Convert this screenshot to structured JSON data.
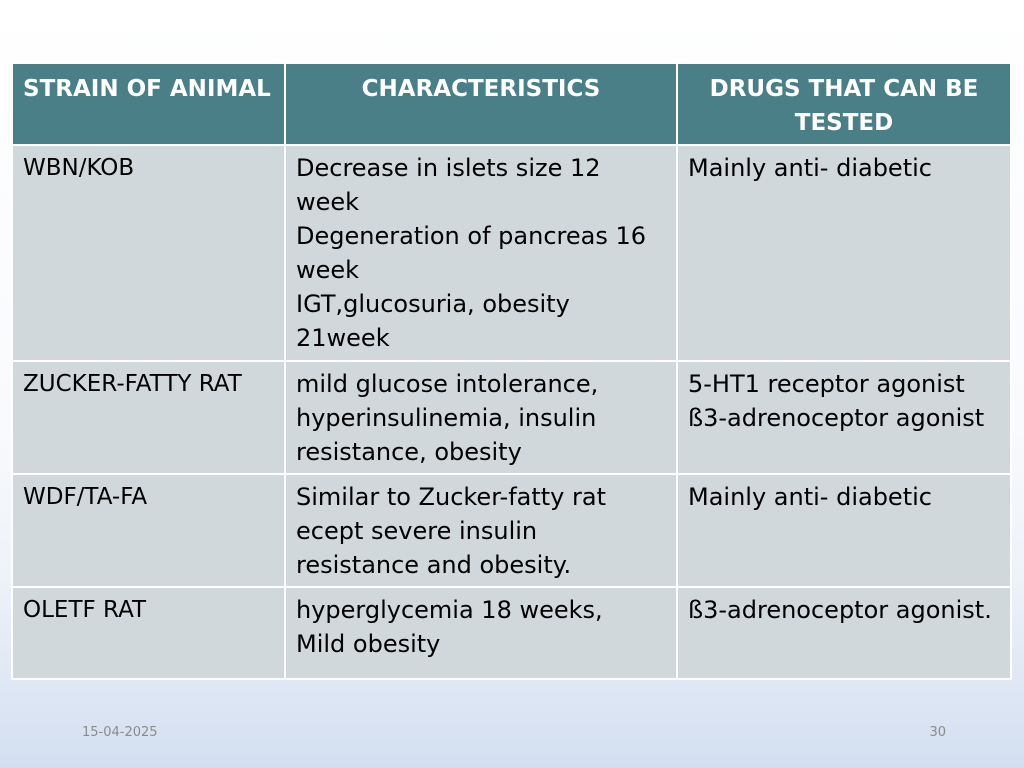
{
  "table": {
    "headers": [
      "STRAIN OF ANIMAL",
      "CHARACTERISTICS",
      "DRUGS THAT CAN BE TESTED"
    ],
    "rows": [
      {
        "strain": "WBN/KOB",
        "characteristics": "Decrease in islets size 12 week\nDegeneration of pancreas 16 week\nIGT,glucosuria, obesity 21week",
        "drugs": "Mainly anti- diabetic"
      },
      {
        "strain": "ZUCKER-FATTY RAT",
        "characteristics": "mild glucose intolerance, hyperinsulinemia, insulin resistance, obesity",
        "drugs": "5-HT1 receptor agonist\nß3-adrenoceptor agonist"
      },
      {
        "strain": "WDF/TA-FA",
        "characteristics": "Similar to Zucker-fatty rat ecept severe insulin resistance and obesity.",
        "drugs": "Mainly anti- diabetic"
      },
      {
        "strain": "OLETF RAT",
        "characteristics": "hyperglycemia  18 weeks,\nMild obesity",
        "drugs": "ß3-adrenoceptor agonist."
      }
    ]
  },
  "footer": {
    "date": "15-04-2025",
    "page": "30"
  },
  "colors": {
    "header_bg": "#4a7f87",
    "cell_bg": "#d0d8db"
  }
}
